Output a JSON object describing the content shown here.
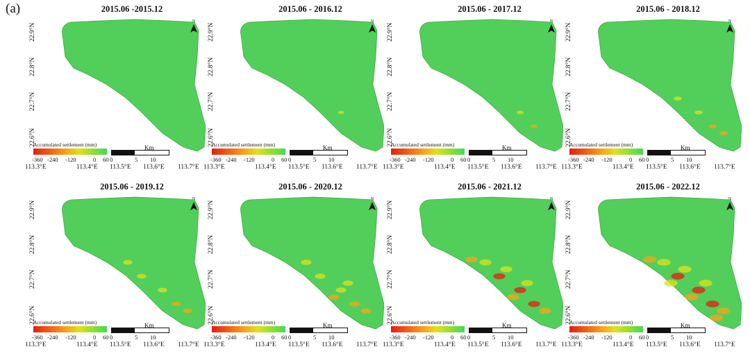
{
  "figure_label": "(a)",
  "panels": [
    {
      "title": "2015.06 -2015.12",
      "level": 0
    },
    {
      "title": "2015.06 - 2016.12",
      "level": 0.08
    },
    {
      "title": "2015.06 - 2017.12",
      "level": 0.18
    },
    {
      "title": "2015.06 - 2018.12",
      "level": 0.3
    },
    {
      "title": "2015.06 - 2019.12",
      "level": 0.45
    },
    {
      "title": "2015.06 - 2020.12",
      "level": 0.6
    },
    {
      "title": "2015.06 - 2021.12",
      "level": 0.78
    },
    {
      "title": "2015.06 - 2022.12",
      "level": 0.95
    }
  ],
  "lat_labels": [
    "22.9°N",
    "22.8°N",
    "22.7°N",
    "22.6°N"
  ],
  "lon_labels": [
    "113.3°E",
    "113.4°E",
    "113.5°E",
    "113.6°E",
    "113.7°E"
  ],
  "legend": {
    "title": "Accumulated settlement (mm)",
    "ticks": [
      "-360",
      "-240",
      "-120",
      "0",
      "60"
    ],
    "colors": [
      "#e81c10",
      "#f7a51a",
      "#dfe21a",
      "#95e02f",
      "#43d85b"
    ]
  },
  "scalebar": {
    "unit": "Km",
    "ticks": [
      "0",
      "5",
      "10"
    ]
  },
  "north_letter": "N",
  "north_icon": "north-arrow-icon"
}
